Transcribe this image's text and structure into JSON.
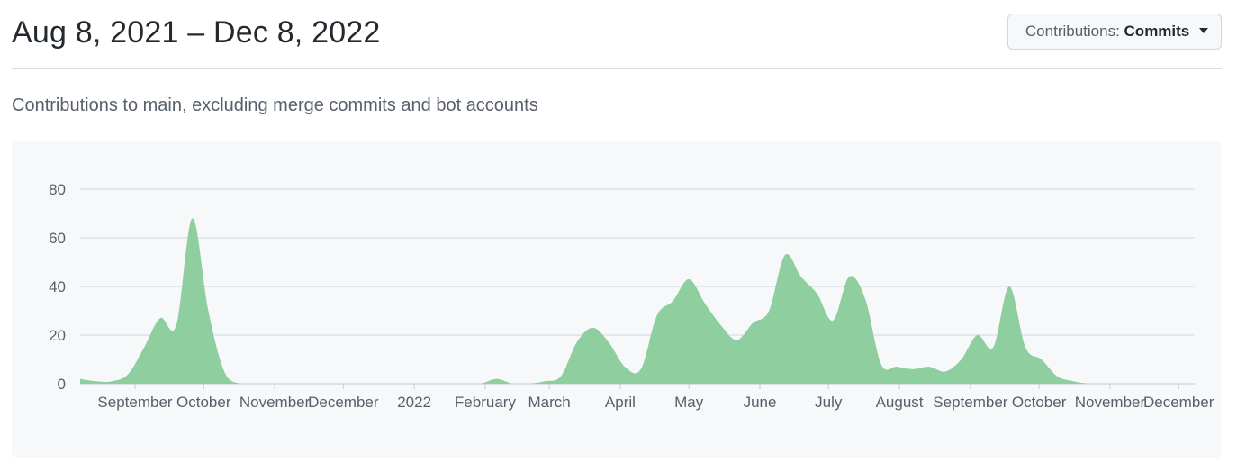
{
  "header": {
    "date_range": "Aug 8, 2021 – Dec 8, 2022",
    "select_label": "Contributions:",
    "select_value": "Commits"
  },
  "subtitle": "Contributions to main, excluding merge commits and bot accounts",
  "colors": {
    "area_fill": "#8fce9f",
    "grid": "#d0d7de",
    "chart_background": "#f6f8fa"
  },
  "chart_data": {
    "type": "area",
    "title": "",
    "xlabel": "",
    "ylabel": "",
    "ylim": [
      0,
      80
    ],
    "yticks": [
      0,
      20,
      40,
      60,
      80
    ],
    "grid": true,
    "legend": "none",
    "xticks": [
      {
        "label": "September",
        "date": "2021-09-01"
      },
      {
        "label": "October",
        "date": "2021-10-01"
      },
      {
        "label": "November",
        "date": "2021-11-01"
      },
      {
        "label": "December",
        "date": "2021-12-01"
      },
      {
        "label": "2022",
        "date": "2022-01-01"
      },
      {
        "label": "February",
        "date": "2022-02-01"
      },
      {
        "label": "March",
        "date": "2022-03-01"
      },
      {
        "label": "April",
        "date": "2022-04-01"
      },
      {
        "label": "May",
        "date": "2022-05-01"
      },
      {
        "label": "June",
        "date": "2022-06-01"
      },
      {
        "label": "July",
        "date": "2022-07-01"
      },
      {
        "label": "August",
        "date": "2022-08-01"
      },
      {
        "label": "September",
        "date": "2022-09-01"
      },
      {
        "label": "October",
        "date": "2022-10-01"
      },
      {
        "label": "November",
        "date": "2022-11-01"
      },
      {
        "label": "December",
        "date": "2022-12-01"
      }
    ],
    "x": [
      "2021-08-08",
      "2021-08-15",
      "2021-08-22",
      "2021-08-29",
      "2021-09-05",
      "2021-09-12",
      "2021-09-19",
      "2021-09-26",
      "2021-10-03",
      "2021-10-10",
      "2021-10-17",
      "2021-10-24",
      "2021-10-31",
      "2021-11-07",
      "2021-11-14",
      "2021-11-21",
      "2021-11-28",
      "2021-12-05",
      "2021-12-12",
      "2021-12-19",
      "2021-12-26",
      "2022-01-02",
      "2022-01-09",
      "2022-01-16",
      "2022-01-23",
      "2022-01-30",
      "2022-02-06",
      "2022-02-13",
      "2022-02-20",
      "2022-02-27",
      "2022-03-06",
      "2022-03-13",
      "2022-03-20",
      "2022-03-27",
      "2022-04-03",
      "2022-04-10",
      "2022-04-17",
      "2022-04-24",
      "2022-05-01",
      "2022-05-08",
      "2022-05-15",
      "2022-05-22",
      "2022-05-29",
      "2022-06-05",
      "2022-06-12",
      "2022-06-19",
      "2022-06-26",
      "2022-07-03",
      "2022-07-10",
      "2022-07-17",
      "2022-07-24",
      "2022-07-31",
      "2022-08-07",
      "2022-08-14",
      "2022-08-21",
      "2022-08-28",
      "2022-09-04",
      "2022-09-11",
      "2022-09-18",
      "2022-09-25",
      "2022-10-02",
      "2022-10-09",
      "2022-10-16",
      "2022-10-23",
      "2022-10-30",
      "2022-11-06",
      "2022-11-13",
      "2022-11-20",
      "2022-11-27",
      "2022-12-04"
    ],
    "series": [
      {
        "values": [
          2,
          1,
          1,
          4,
          15,
          27,
          24,
          68,
          30,
          5,
          0,
          0,
          0,
          0,
          0,
          0,
          0,
          0,
          0,
          0,
          0,
          0,
          0,
          0,
          0,
          0,
          2,
          0,
          0,
          1,
          3,
          17,
          23,
          17,
          7,
          6,
          28,
          34,
          43,
          33,
          24,
          18,
          25,
          30,
          53,
          44,
          37,
          26,
          44,
          35,
          8,
          7,
          6,
          7,
          5,
          10,
          20,
          15,
          40,
          15,
          10,
          3,
          1,
          0,
          0,
          0,
          0,
          0,
          0,
          0
        ]
      }
    ]
  }
}
